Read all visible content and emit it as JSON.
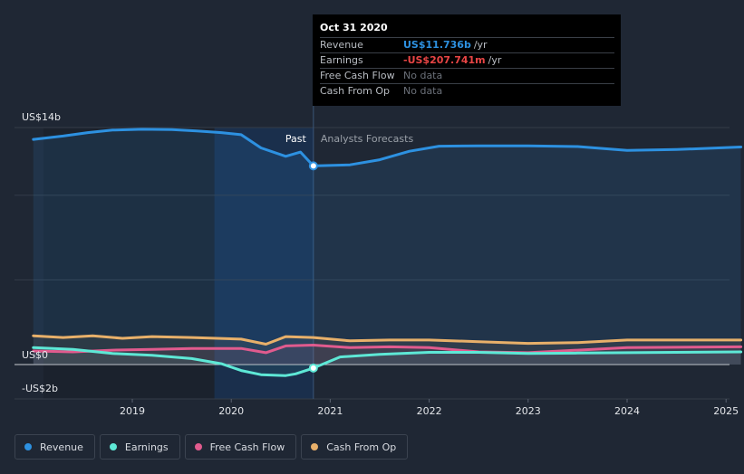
{
  "chart_data": {
    "type": "line",
    "x_axis": {
      "ticks": [
        {
          "label": "2019",
          "value": 2019.0
        },
        {
          "label": "2020",
          "value": 2020.0
        },
        {
          "label": "2021",
          "value": 2021.0
        },
        {
          "label": "2022",
          "value": 2022.0
        },
        {
          "label": "2023",
          "value": 2023.0
        },
        {
          "label": "2024",
          "value": 2024.0
        },
        {
          "label": "2025",
          "value": 2025.0
        }
      ],
      "range": [
        2017.7,
        2025.15
      ]
    },
    "y_axis": {
      "label_top": "US$14b",
      "label_zero": "US$0",
      "label_bottom": "-US$2b",
      "range": [
        -2,
        14
      ],
      "unit": "US$ billions"
    },
    "regions": {
      "past_label": "Past",
      "forecast_label": "Analysts Forecasts",
      "highlight_start": 2019.83,
      "divider": 2020.83
    },
    "series": [
      {
        "name": "Revenue",
        "color": "#2d91e1",
        "points": [
          [
            2018.0,
            13.3
          ],
          [
            2018.3,
            13.5
          ],
          [
            2018.55,
            13.7
          ],
          [
            2018.8,
            13.85
          ],
          [
            2019.1,
            13.9
          ],
          [
            2019.4,
            13.88
          ],
          [
            2019.65,
            13.8
          ],
          [
            2019.9,
            13.7
          ],
          [
            2020.1,
            13.58
          ],
          [
            2020.3,
            12.8
          ],
          [
            2020.55,
            12.3
          ],
          [
            2020.7,
            12.55
          ],
          [
            2020.83,
            11.736
          ],
          [
            2021.2,
            11.8
          ],
          [
            2021.5,
            12.1
          ],
          [
            2021.8,
            12.6
          ],
          [
            2022.1,
            12.9
          ],
          [
            2022.5,
            12.92
          ],
          [
            2023.0,
            12.92
          ],
          [
            2023.5,
            12.88
          ],
          [
            2024.0,
            12.65
          ],
          [
            2024.5,
            12.7
          ],
          [
            2025.15,
            12.85
          ]
        ]
      },
      {
        "name": "Earnings",
        "color": "#5ee8d6",
        "points": [
          [
            2018.0,
            1.0
          ],
          [
            2018.4,
            0.9
          ],
          [
            2018.8,
            0.65
          ],
          [
            2019.2,
            0.55
          ],
          [
            2019.6,
            0.35
          ],
          [
            2019.9,
            0.05
          ],
          [
            2020.1,
            -0.35
          ],
          [
            2020.3,
            -0.6
          ],
          [
            2020.55,
            -0.65
          ],
          [
            2020.65,
            -0.55
          ],
          [
            2020.83,
            -0.208
          ],
          [
            2021.1,
            0.45
          ],
          [
            2021.5,
            0.6
          ],
          [
            2022.0,
            0.72
          ],
          [
            2022.5,
            0.72
          ],
          [
            2023.0,
            0.65
          ],
          [
            2023.5,
            0.68
          ],
          [
            2024.0,
            0.7
          ],
          [
            2025.15,
            0.75
          ]
        ]
      },
      {
        "name": "Free Cash Flow",
        "color": "#e15b8e",
        "points": [
          [
            2018.0,
            0.8
          ],
          [
            2018.4,
            0.75
          ],
          [
            2018.8,
            0.85
          ],
          [
            2019.2,
            0.9
          ],
          [
            2019.6,
            0.95
          ],
          [
            2020.1,
            0.95
          ],
          [
            2020.35,
            0.7
          ],
          [
            2020.55,
            1.1
          ],
          [
            2020.83,
            1.15
          ],
          [
            2021.2,
            1.0
          ],
          [
            2021.6,
            1.05
          ],
          [
            2022.0,
            1.0
          ],
          [
            2022.5,
            0.75
          ],
          [
            2023.0,
            0.7
          ],
          [
            2023.5,
            0.85
          ],
          [
            2024.0,
            1.0
          ],
          [
            2025.15,
            1.05
          ]
        ]
      },
      {
        "name": "Cash From Op",
        "color": "#e8b06a",
        "points": [
          [
            2018.0,
            1.7
          ],
          [
            2018.3,
            1.6
          ],
          [
            2018.6,
            1.7
          ],
          [
            2018.9,
            1.55
          ],
          [
            2019.2,
            1.65
          ],
          [
            2019.6,
            1.6
          ],
          [
            2020.1,
            1.5
          ],
          [
            2020.35,
            1.2
          ],
          [
            2020.55,
            1.65
          ],
          [
            2020.83,
            1.6
          ],
          [
            2021.2,
            1.4
          ],
          [
            2021.6,
            1.45
          ],
          [
            2022.0,
            1.45
          ],
          [
            2022.5,
            1.35
          ],
          [
            2023.0,
            1.25
          ],
          [
            2023.5,
            1.3
          ],
          [
            2024.0,
            1.45
          ],
          [
            2025.15,
            1.45
          ]
        ]
      }
    ],
    "grid": true,
    "legend_position": "bottom-left",
    "highlight_point": {
      "x": 2020.83
    }
  },
  "tooltip": {
    "date": "Oct 31 2020",
    "rows": [
      {
        "label": "Revenue",
        "value": "US$11.736b",
        "unit": "/yr",
        "color": "#2d91e1"
      },
      {
        "label": "Earnings",
        "value": "-US$207.741m",
        "unit": "/yr",
        "color": "#e84545"
      },
      {
        "label": "Free Cash Flow",
        "value": "No data",
        "unit": ""
      },
      {
        "label": "Cash From Op",
        "value": "No data",
        "unit": ""
      }
    ]
  },
  "legend": [
    {
      "label": "Revenue",
      "color": "#2d91e1"
    },
    {
      "label": "Earnings",
      "color": "#5ee8d6"
    },
    {
      "label": "Free Cash Flow",
      "color": "#e15b8e"
    },
    {
      "label": "Cash From Op",
      "color": "#e8b06a"
    }
  ]
}
